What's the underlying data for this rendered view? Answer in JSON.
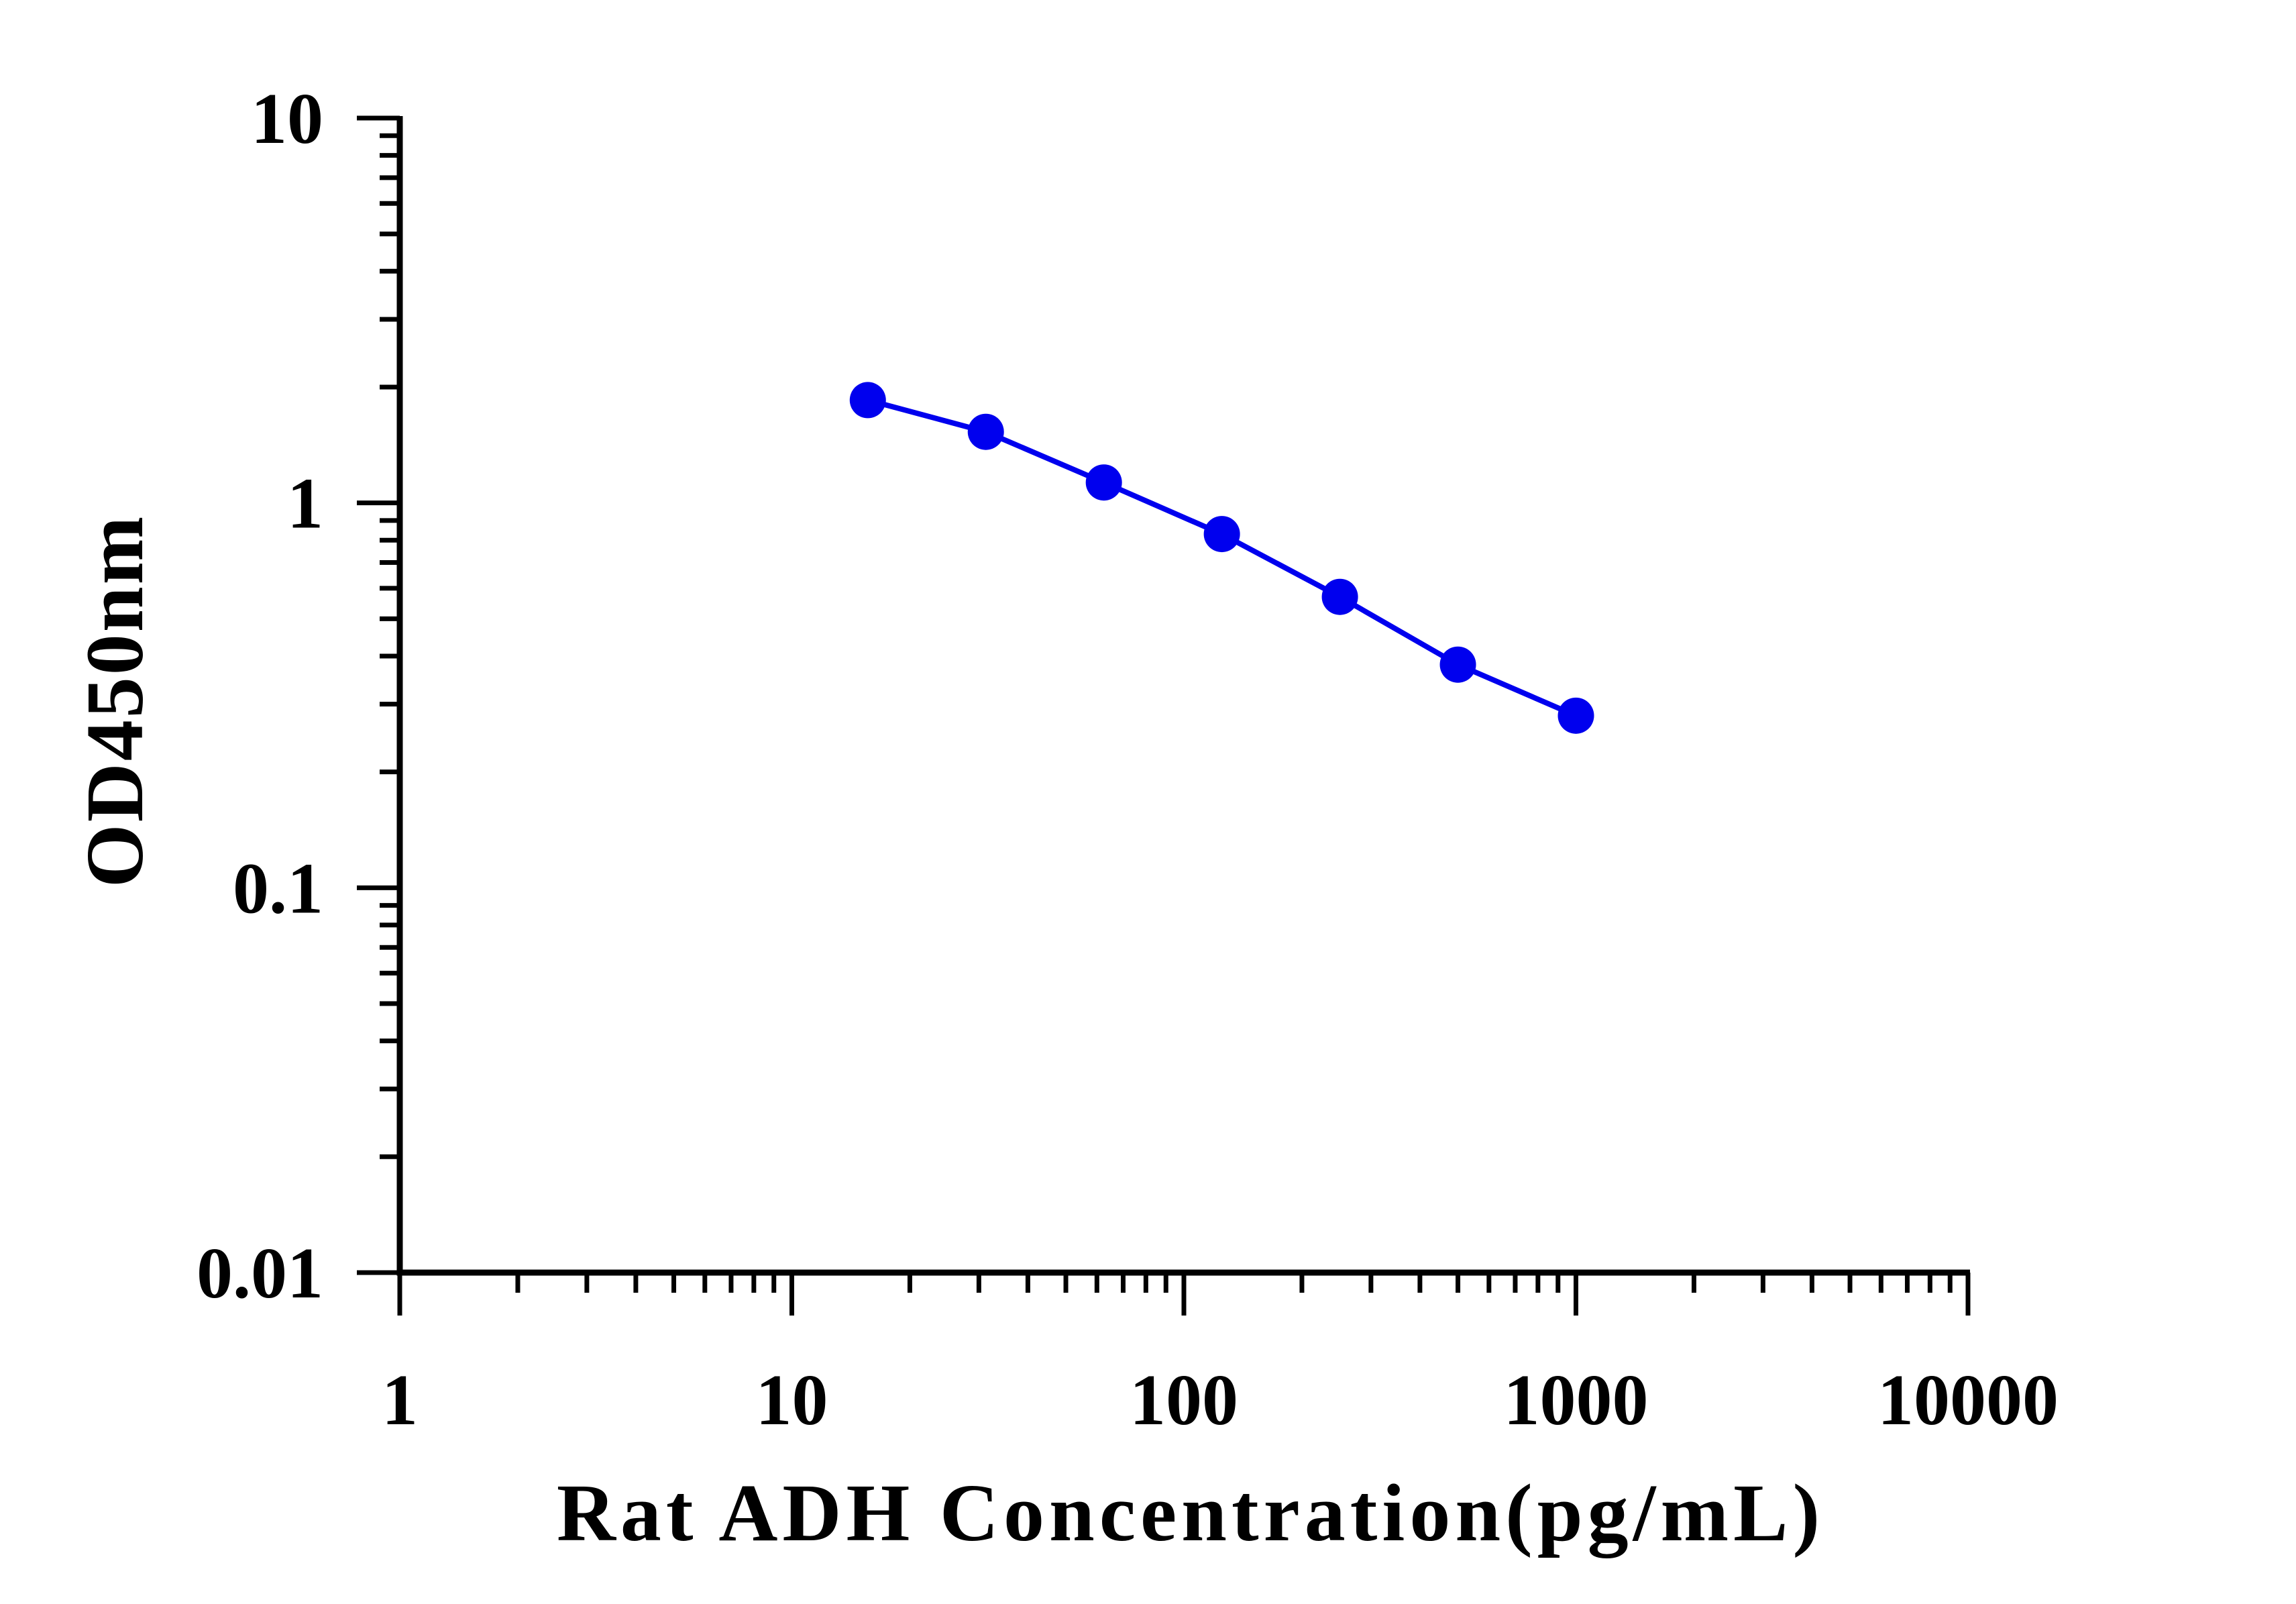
{
  "chart_data": {
    "type": "line",
    "title": "",
    "xlabel": "Rat ADH Concentration(pg/mL)",
    "ylabel": "OD450nm",
    "x_scale": "log",
    "y_scale": "log",
    "xlim": [
      1,
      10000
    ],
    "ylim": [
      0.01,
      10
    ],
    "x_ticks": [
      "1",
      "10",
      "100",
      "1000",
      "10000"
    ],
    "y_ticks": [
      "0.01",
      "0.1",
      "1",
      "10"
    ],
    "grid": false,
    "legend": "none",
    "series": [
      {
        "color": "#0000ee",
        "marker": "circle",
        "x": [
          15.625,
          31.25,
          62.5,
          125,
          250,
          500,
          1000
        ],
        "y": [
          1.85,
          1.53,
          1.13,
          0.83,
          0.57,
          0.38,
          0.28
        ]
      }
    ]
  }
}
